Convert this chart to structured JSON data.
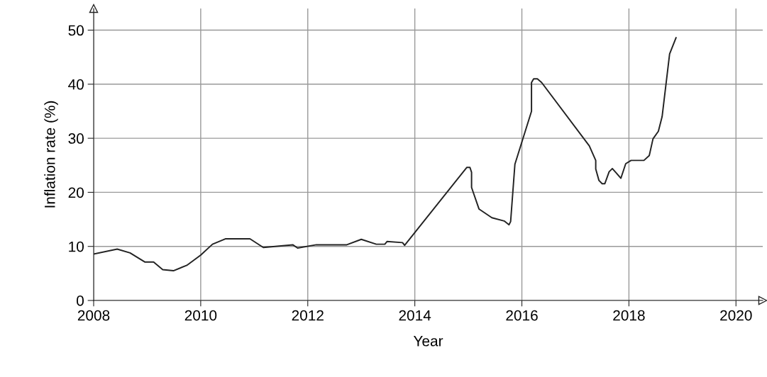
{
  "chart_data": {
    "type": "line",
    "xlabel": "Year",
    "ylabel": "Inflation rate (%)",
    "x": [
      2008.0,
      2008.44,
      2008.68,
      2008.96,
      2009.12,
      2009.29,
      2009.49,
      2009.74,
      2010.0,
      2010.22,
      2010.46,
      2010.92,
      2011.17,
      2011.72,
      2011.81,
      2012.16,
      2012.73,
      2013.0,
      2013.28,
      2013.44,
      2013.48,
      2013.77,
      2013.81,
      2014.97,
      2015.03,
      2015.06,
      2015.06,
      2015.2,
      2015.44,
      2015.67,
      2015.76,
      2015.79,
      2015.87,
      2016.18,
      2016.18,
      2016.22,
      2016.29,
      2016.37,
      2017.26,
      2017.38,
      2017.38,
      2017.44,
      2017.5,
      2017.55,
      2017.63,
      2017.69,
      2017.77,
      2017.85,
      2017.94,
      2018.04,
      2018.28,
      2018.38,
      2018.45,
      2018.55,
      2018.62,
      2018.76,
      2018.88
    ],
    "series": [
      {
        "color": "#222222",
        "values": [
          8.6,
          9.5,
          8.8,
          7.1,
          7.1,
          5.7,
          5.5,
          6.5,
          8.4,
          10.4,
          11.4,
          11.4,
          9.8,
          10.3,
          9.7,
          10.3,
          10.3,
          11.3,
          10.4,
          10.4,
          10.9,
          10.7,
          10.2,
          24.6,
          24.6,
          23.7,
          20.9,
          16.9,
          15.3,
          14.7,
          14.0,
          14.6,
          25.2,
          35.0,
          40.3,
          41.0,
          41.0,
          40.3,
          28.6,
          25.9,
          24.3,
          22.2,
          21.6,
          21.6,
          23.8,
          24.4,
          23.5,
          22.6,
          25.3,
          25.9,
          25.9,
          26.8,
          29.9,
          31.3,
          34.0,
          45.6,
          48.6
        ]
      }
    ],
    "xlim": [
      2008,
      2020.5
    ],
    "ylim": [
      0,
      54
    ],
    "xticks": [
      2008,
      2010,
      2012,
      2014,
      2016,
      2018,
      2020
    ],
    "yticks": [
      0,
      10,
      20,
      30,
      40,
      50
    ],
    "grid": true,
    "marker": "none",
    "line_style": "solid",
    "legend": false
  }
}
